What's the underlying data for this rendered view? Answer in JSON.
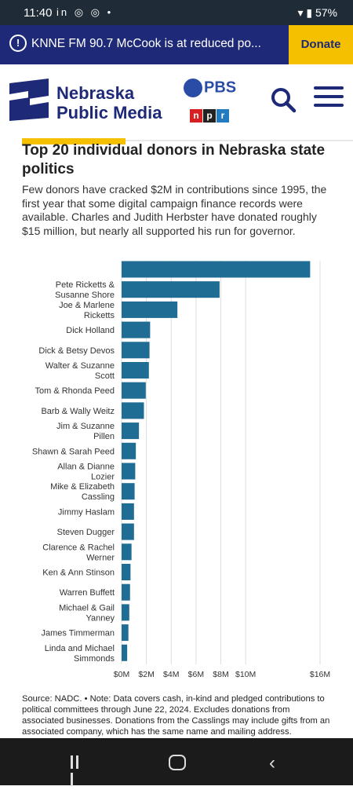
{
  "status_bar": {
    "time": "11:40",
    "left_icons": "in ◎ ◎ •",
    "battery": "57%"
  },
  "alert": {
    "message": "KNNE FM 90.7 McCook is at reduced po...",
    "donate_label": "Donate"
  },
  "header": {
    "brand_line1": "Nebraska",
    "brand_line2": "Public Media",
    "pbs_label": "PBS",
    "npr_letters": [
      "n",
      "p",
      "r"
    ]
  },
  "article": {
    "title": "Top 20 individual donors in Nebraska state politics",
    "subtitle": "Few donors have cracked $2M in contributions since 1995, the first year that some digital campaign finance records were available. Charles and Judith Herbster have donated roughly $15 million, but nearly all supported his run for governor.",
    "source": "Source: NADC. • Note: Data covers cash, in-kind and pledged contributions to political committees through June 22, 2024. Excludes donations from associated businesses. Donations from the Casslings may include gifts from an associated company, which has the same name and mailing address."
  },
  "chart_data": {
    "type": "bar",
    "orientation": "horizontal",
    "bar_color": "#1f6c94",
    "categories": [
      "",
      "Pete Ricketts & Susanne Shore",
      "Joe & Marlene Ricketts",
      "Dick Holland",
      "Dick & Betsy Devos",
      "Walter & Suzanne Scott",
      "Tom & Rhonda Peed",
      "Barb & Wally Weitz",
      "Jim & Suzanne Pillen",
      "Shawn & Sarah Peed",
      "Allan & Dianne Lozier",
      "Mike & Elizabeth Cassling",
      "Jimmy Haslam",
      "Steven Dugger",
      "Clarence & Rachel Werner",
      "Ken & Ann Stinson",
      "Warren Buffett",
      "Michael & Gail Yanney",
      "James Timmerman",
      "Linda and Michael Simmonds"
    ],
    "values": [
      15.2,
      7.9,
      4.5,
      2.3,
      2.25,
      2.2,
      1.95,
      1.8,
      1.4,
      1.15,
      1.1,
      1.05,
      1.0,
      1.0,
      0.8,
      0.72,
      0.68,
      0.62,
      0.55,
      0.45
    ],
    "xlim": [
      0,
      16
    ],
    "xticks": [
      {
        "value": 0,
        "label": "$0M"
      },
      {
        "value": 2,
        "label": "$2M"
      },
      {
        "value": 4,
        "label": "$4M"
      },
      {
        "value": 6,
        "label": "$6M"
      },
      {
        "value": 8,
        "label": "$8M"
      },
      {
        "value": 10,
        "label": "$10M"
      },
      {
        "value": 16,
        "label": "$16M"
      }
    ],
    "grid": true
  }
}
